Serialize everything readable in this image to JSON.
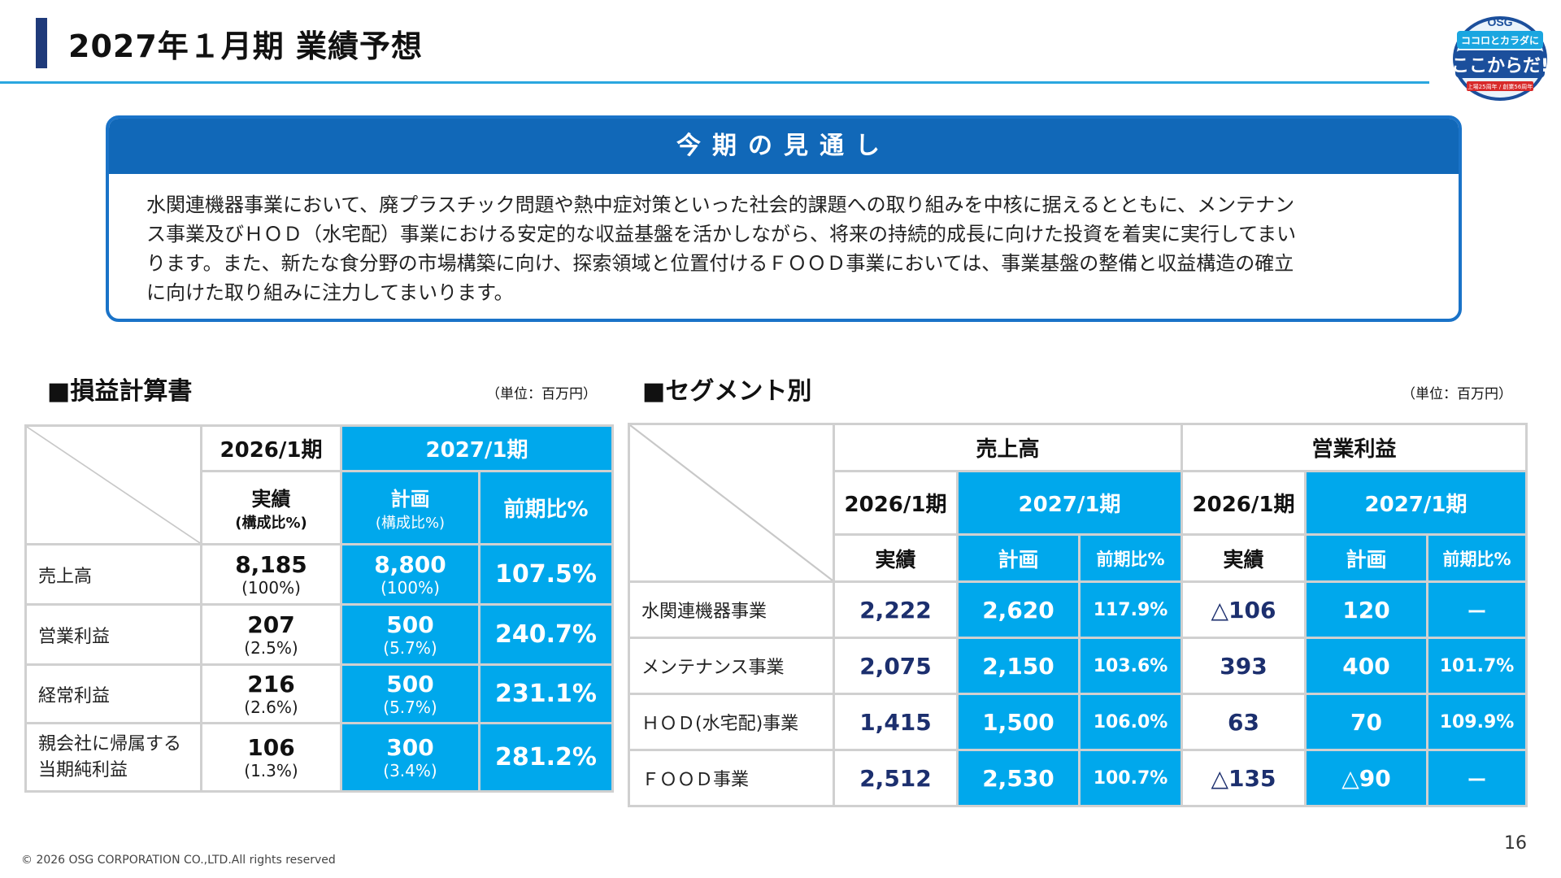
{
  "title": "2027年１月期 業績予想",
  "logo": {
    "line1": "OSG",
    "line2": "ココロとカラダに",
    "line3": "ここからだ!",
    "line4": "上場25周年 / 創業56周年"
  },
  "outlook": {
    "heading": "今期の見通し",
    "lines": [
      "水関連機器事業において、廃プラスチック問題や熱中症対策といった社会的課題への取り組みを中核に据えるとともに、メンテナン",
      "ス事業及びＨＯＤ（水宅配）事業における安定的な収益基盤を活かしながら、将来の持続的成長に向けた投資を着実に実行してまい",
      "ります。また、新たな食分野の市場構築に向け、探索領域と位置付けるＦＯＯＤ事業においては、事業基盤の整備と収益構造の確立",
      "に向けた取り組みに注力してまいります。"
    ]
  },
  "pl": {
    "title": "■損益計算書",
    "unit": "（単位：百万円）",
    "hdr_prev": "2026/1期",
    "hdr_next": "2027/1期",
    "sub_actual": "実績",
    "sub_actual_note": "(構成比%)",
    "sub_plan": "計画",
    "sub_plan_note": "(構成比%)",
    "sub_yoy": "前期比%",
    "rows": [
      {
        "label": "売上高",
        "label2": "",
        "prev": "8,185",
        "prev_pct": "(100%)",
        "plan": "8,800",
        "plan_pct": "(100%)",
        "yoy": "107.5%"
      },
      {
        "label": "営業利益",
        "label2": "",
        "prev": "207",
        "prev_pct": "(2.5%)",
        "plan": "500",
        "plan_pct": "(5.7%)",
        "yoy": "240.7%"
      },
      {
        "label": "経常利益",
        "label2": "",
        "prev": "216",
        "prev_pct": "(2.6%)",
        "plan": "500",
        "plan_pct": "(5.7%)",
        "yoy": "231.1%"
      },
      {
        "label": "親会社に帰属する",
        "label2": "当期純利益",
        "prev": "106",
        "prev_pct": "(1.3%)",
        "plan": "300",
        "plan_pct": "(3.4%)",
        "yoy": "281.2%"
      }
    ]
  },
  "seg": {
    "title": "■セグメント別",
    "unit": "（単位：百万円）",
    "grp_sales": "売上高",
    "grp_op": "営業利益",
    "hdr_prev": "2026/1期",
    "hdr_next": "2027/1期",
    "sub_actual": "実績",
    "sub_plan": "計画",
    "sub_yoy": "前期比%",
    "rows": [
      {
        "label": "水関連機器事業",
        "s_prev": "2,222",
        "s_plan": "2,620",
        "s_yoy": "117.9%",
        "o_prev": "△106",
        "o_plan": "120",
        "o_yoy": "ー"
      },
      {
        "label": "メンテナンス事業",
        "s_prev": "2,075",
        "s_plan": "2,150",
        "s_yoy": "103.6%",
        "o_prev": "393",
        "o_plan": "400",
        "o_yoy": "101.7%"
      },
      {
        "label": "ＨＯＤ(水宅配)事業",
        "s_prev": "1,415",
        "s_plan": "1,500",
        "s_yoy": "106.0%",
        "o_prev": "63",
        "o_plan": "70",
        "o_yoy": "109.9%"
      },
      {
        "label": "ＦＯＯＤ事業",
        "s_prev": "2,512",
        "s_plan": "2,530",
        "s_yoy": "100.7%",
        "o_prev": "△135",
        "o_plan": "△90",
        "o_yoy": "ー"
      }
    ]
  },
  "footer": "© 2026 OSG CORPORATION CO.,LTD.All rights reserved",
  "page_number": "16",
  "colors": {
    "accent": "#00a8ec",
    "header": "#1168b8",
    "navy": "#1c2f6e"
  }
}
